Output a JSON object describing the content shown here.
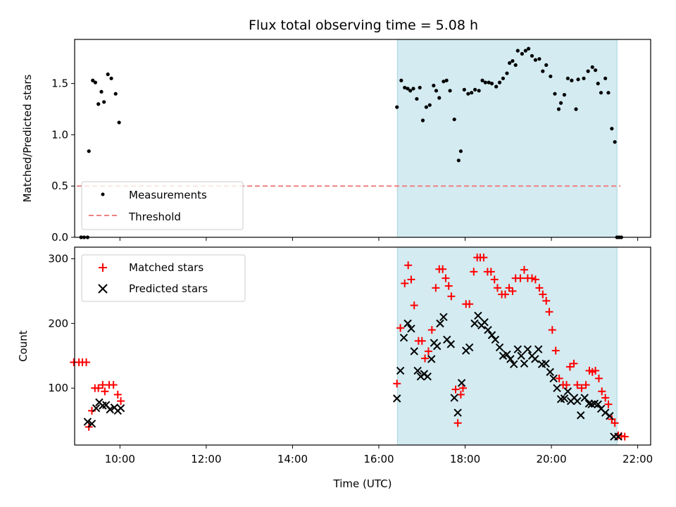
{
  "chart_data": {
    "type": "scatter",
    "title": "Flux total observing time = 5.08 h",
    "xlabel": "Time (UTC)",
    "xlim": [
      8.95,
      22.3
    ],
    "x_ticks": [
      10,
      12,
      14,
      16,
      18,
      20,
      22
    ],
    "x_tick_labels": [
      "10:00",
      "12:00",
      "14:00",
      "16:00",
      "18:00",
      "20:00",
      "22:00"
    ],
    "shaded_region": {
      "x": [
        16.43,
        21.52
      ],
      "color": "#d3ebf1"
    },
    "top_panel": {
      "ylabel": "Matched/Predicted stars",
      "ylim": [
        0,
        1.93
      ],
      "y_ticks": [
        0,
        0.5,
        1.0,
        1.5
      ],
      "y_tick_labels": [
        "0.0",
        "0.5",
        "1.0",
        "1.5"
      ],
      "legend": {
        "placement": "lower-left",
        "entries": [
          "Measurements",
          "Threshold"
        ]
      },
      "threshold": {
        "name": "Threshold",
        "y": 0.5,
        "x": [
          9.0,
          21.6
        ],
        "color": "#f08080"
      },
      "measurements": {
        "name": "Measurements",
        "color": "#000000",
        "points": [
          [
            9.1,
            0
          ],
          [
            9.17,
            0
          ],
          [
            9.25,
            0
          ],
          [
            9.28,
            0.84
          ],
          [
            9.37,
            1.53
          ],
          [
            9.43,
            1.51
          ],
          [
            9.5,
            1.3
          ],
          [
            9.57,
            1.42
          ],
          [
            9.63,
            1.32
          ],
          [
            9.72,
            1.59
          ],
          [
            9.8,
            1.55
          ],
          [
            9.9,
            1.4
          ],
          [
            9.98,
            1.12
          ],
          [
            16.42,
            1.27
          ],
          [
            16.52,
            1.53
          ],
          [
            16.6,
            1.46
          ],
          [
            16.67,
            1.45
          ],
          [
            16.73,
            1.43
          ],
          [
            16.8,
            1.45
          ],
          [
            16.88,
            1.35
          ],
          [
            16.95,
            1.46
          ],
          [
            17.02,
            1.14
          ],
          [
            17.1,
            1.27
          ],
          [
            17.18,
            1.29
          ],
          [
            17.27,
            1.48
          ],
          [
            17.33,
            1.43
          ],
          [
            17.4,
            1.36
          ],
          [
            17.5,
            1.52
          ],
          [
            17.57,
            1.53
          ],
          [
            17.65,
            1.43
          ],
          [
            17.75,
            1.15
          ],
          [
            17.85,
            0.75
          ],
          [
            17.9,
            0.84
          ],
          [
            17.98,
            1.44
          ],
          [
            18.07,
            1.4
          ],
          [
            18.15,
            1.41
          ],
          [
            18.23,
            1.44
          ],
          [
            18.32,
            1.43
          ],
          [
            18.4,
            1.53
          ],
          [
            18.47,
            1.51
          ],
          [
            18.55,
            1.51
          ],
          [
            18.62,
            1.5
          ],
          [
            18.72,
            1.47
          ],
          [
            18.8,
            1.51
          ],
          [
            18.88,
            1.55
          ],
          [
            18.97,
            1.6
          ],
          [
            19.03,
            1.7
          ],
          [
            19.1,
            1.72
          ],
          [
            19.17,
            1.68
          ],
          [
            19.22,
            1.82
          ],
          [
            19.32,
            1.79
          ],
          [
            19.4,
            1.82
          ],
          [
            19.47,
            1.84
          ],
          [
            19.55,
            1.77
          ],
          [
            19.63,
            1.73
          ],
          [
            19.72,
            1.74
          ],
          [
            19.8,
            1.62
          ],
          [
            19.88,
            1.68
          ],
          [
            19.98,
            1.57
          ],
          [
            20.08,
            1.4
          ],
          [
            20.17,
            1.25
          ],
          [
            20.22,
            1.31
          ],
          [
            20.3,
            1.39
          ],
          [
            20.38,
            1.55
          ],
          [
            20.47,
            1.53
          ],
          [
            20.57,
            1.25
          ],
          [
            20.62,
            1.54
          ],
          [
            20.75,
            1.55
          ],
          [
            20.85,
            1.62
          ],
          [
            20.95,
            1.66
          ],
          [
            21.02,
            1.63
          ],
          [
            21.08,
            1.5
          ],
          [
            21.15,
            1.41
          ],
          [
            21.25,
            1.55
          ],
          [
            21.32,
            1.41
          ],
          [
            21.4,
            1.06
          ],
          [
            21.47,
            0.93
          ],
          [
            21.52,
            0
          ],
          [
            21.57,
            0
          ],
          [
            21.62,
            0
          ]
        ]
      }
    },
    "bottom_panel": {
      "ylabel": "Count",
      "ylim": [
        12,
        318
      ],
      "y_ticks": [
        100,
        200,
        300
      ],
      "y_tick_labels": [
        "100",
        "200",
        "300"
      ],
      "legend": {
        "placement": "upper-left",
        "entries": [
          "Matched stars",
          "Predicted stars"
        ]
      },
      "series": [
        {
          "name": "Matched stars",
          "marker": "plus",
          "color": "#ff0000",
          "points": [
            [
              8.93,
              140
            ],
            [
              9.05,
              140
            ],
            [
              9.13,
              140
            ],
            [
              9.22,
              140
            ],
            [
              9.28,
              40
            ],
            [
              9.35,
              65
            ],
            [
              9.42,
              100
            ],
            [
              9.5,
              100
            ],
            [
              9.6,
              105
            ],
            [
              9.65,
              95
            ],
            [
              9.75,
              105
            ],
            [
              9.85,
              105
            ],
            [
              9.95,
              90
            ],
            [
              10.02,
              80
            ],
            [
              16.42,
              107
            ],
            [
              16.5,
              193
            ],
            [
              16.6,
              262
            ],
            [
              16.68,
              290
            ],
            [
              16.75,
              268
            ],
            [
              16.82,
              228
            ],
            [
              16.92,
              173
            ],
            [
              17.0,
              173
            ],
            [
              17.07,
              146
            ],
            [
              17.15,
              157
            ],
            [
              17.23,
              190
            ],
            [
              17.32,
              255
            ],
            [
              17.4,
              284
            ],
            [
              17.48,
              284
            ],
            [
              17.55,
              270
            ],
            [
              17.62,
              258
            ],
            [
              17.68,
              242
            ],
            [
              17.78,
              98
            ],
            [
              17.83,
              46
            ],
            [
              17.9,
              90
            ],
            [
              17.95,
              100
            ],
            [
              18.02,
              230
            ],
            [
              18.1,
              230
            ],
            [
              18.2,
              280
            ],
            [
              18.28,
              302
            ],
            [
              18.35,
              302
            ],
            [
              18.43,
              302
            ],
            [
              18.52,
              280
            ],
            [
              18.6,
              280
            ],
            [
              18.68,
              268
            ],
            [
              18.75,
              255
            ],
            [
              18.85,
              245
            ],
            [
              18.93,
              245
            ],
            [
              19.02,
              255
            ],
            [
              19.1,
              250
            ],
            [
              19.17,
              270
            ],
            [
              19.28,
              270
            ],
            [
              19.37,
              283
            ],
            [
              19.45,
              270
            ],
            [
              19.55,
              270
            ],
            [
              19.63,
              268
            ],
            [
              19.72,
              255
            ],
            [
              19.8,
              245
            ],
            [
              19.88,
              235
            ],
            [
              19.95,
              218
            ],
            [
              20.02,
              190
            ],
            [
              20.1,
              158
            ],
            [
              20.18,
              115
            ],
            [
              20.27,
              105
            ],
            [
              20.35,
              105
            ],
            [
              20.43,
              133
            ],
            [
              20.52,
              138
            ],
            [
              20.6,
              105
            ],
            [
              20.7,
              100
            ],
            [
              20.8,
              105
            ],
            [
              20.88,
              127
            ],
            [
              20.95,
              125
            ],
            [
              21.02,
              127
            ],
            [
              21.1,
              115
            ],
            [
              21.17,
              95
            ],
            [
              21.25,
              85
            ],
            [
              21.32,
              75
            ],
            [
              21.4,
              52
            ],
            [
              21.47,
              46
            ],
            [
              21.55,
              27
            ],
            [
              21.62,
              26
            ],
            [
              21.7,
              25
            ]
          ]
        },
        {
          "name": "Predicted stars",
          "marker": "x",
          "color": "#000000",
          "points": [
            [
              9.25,
              48
            ],
            [
              9.35,
              45
            ],
            [
              9.45,
              69
            ],
            [
              9.52,
              78
            ],
            [
              9.6,
              73
            ],
            [
              9.68,
              74
            ],
            [
              9.77,
              67
            ],
            [
              9.87,
              70
            ],
            [
              9.95,
              65
            ],
            [
              10.02,
              69
            ],
            [
              16.42,
              84
            ],
            [
              16.5,
              127
            ],
            [
              16.58,
              178
            ],
            [
              16.67,
              200
            ],
            [
              16.75,
              192
            ],
            [
              16.82,
              157
            ],
            [
              16.9,
              127
            ],
            [
              16.97,
              118
            ],
            [
              17.05,
              122
            ],
            [
              17.13,
              118
            ],
            [
              17.22,
              145
            ],
            [
              17.28,
              170
            ],
            [
              17.35,
              165
            ],
            [
              17.42,
              200
            ],
            [
              17.5,
              210
            ],
            [
              17.58,
              175
            ],
            [
              17.67,
              168
            ],
            [
              17.75,
              85
            ],
            [
              17.83,
              62
            ],
            [
              17.92,
              108
            ],
            [
              18.02,
              158
            ],
            [
              18.1,
              163
            ],
            [
              18.22,
              200
            ],
            [
              18.3,
              212
            ],
            [
              18.38,
              197
            ],
            [
              18.45,
              202
            ],
            [
              18.53,
              190
            ],
            [
              18.62,
              182
            ],
            [
              18.7,
              175
            ],
            [
              18.8,
              163
            ],
            [
              18.88,
              150
            ],
            [
              18.97,
              152
            ],
            [
              19.05,
              145
            ],
            [
              19.13,
              137
            ],
            [
              19.22,
              160
            ],
            [
              19.3,
              150
            ],
            [
              19.37,
              138
            ],
            [
              19.45,
              160
            ],
            [
              19.55,
              150
            ],
            [
              19.62,
              145
            ],
            [
              19.7,
              160
            ],
            [
              19.78,
              137
            ],
            [
              19.87,
              138
            ],
            [
              19.97,
              125
            ],
            [
              20.05,
              115
            ],
            [
              20.13,
              100
            ],
            [
              20.22,
              83
            ],
            [
              20.3,
              84
            ],
            [
              20.38,
              95
            ],
            [
              20.45,
              80
            ],
            [
              20.53,
              85
            ],
            [
              20.6,
              80
            ],
            [
              20.68,
              58
            ],
            [
              20.77,
              85
            ],
            [
              20.87,
              76
            ],
            [
              20.93,
              75
            ],
            [
              21.0,
              76
            ],
            [
              21.08,
              75
            ],
            [
              21.15,
              68
            ],
            [
              21.25,
              62
            ],
            [
              21.35,
              57
            ],
            [
              21.45,
              25
            ],
            [
              21.55,
              25
            ]
          ]
        }
      ]
    }
  }
}
